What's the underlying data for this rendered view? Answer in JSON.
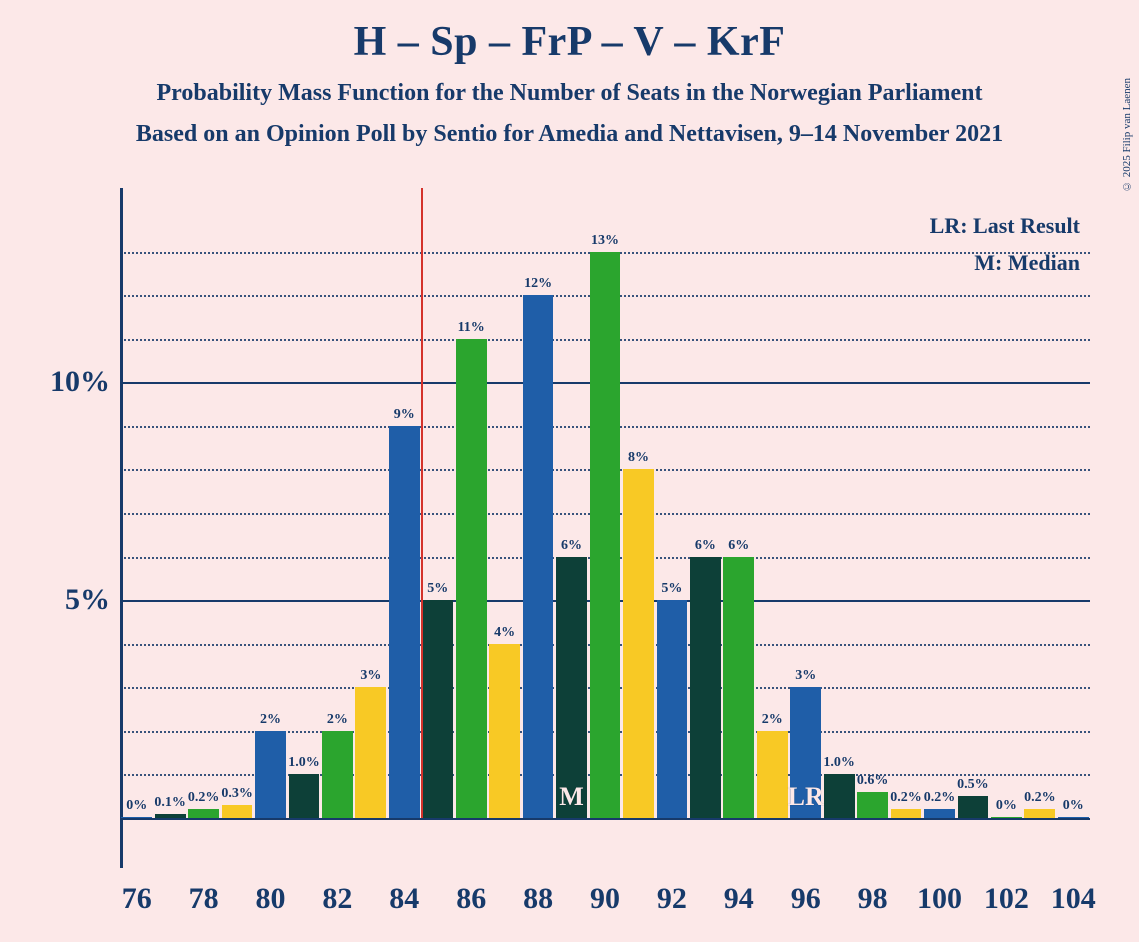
{
  "title": "H – Sp – FrP – V – KrF",
  "subtitle1": "Probability Mass Function for the Number of Seats in the Norwegian Parliament",
  "subtitle2": "Based on an Opinion Poll by Sentio for Amedia and Nettavisen, 9–14 November 2021",
  "copyright": "© 2025 Filip van Laenen",
  "legend_lr": "LR: Last Result",
  "legend_m": "M: Median",
  "chart": {
    "type": "bar",
    "background_color": "#fce8e8",
    "text_color": "#173a6a",
    "title_fontsize": 42,
    "subtitle_fontsize": 24,
    "y_axis": {
      "min": 0,
      "max": 14,
      "major_ticks": [
        5,
        10
      ],
      "major_labels": [
        "5%",
        "10%"
      ],
      "minor_step": 1,
      "major_color": "#173a6a",
      "minor_style": "dotted"
    },
    "x_axis": {
      "min": 76,
      "max": 104,
      "step": 2,
      "labels": [
        "76",
        "78",
        "80",
        "82",
        "84",
        "86",
        "88",
        "90",
        "92",
        "94",
        "96",
        "98",
        "100",
        "102",
        "104"
      ]
    },
    "majority_line": {
      "x": 84.5,
      "color": "#d4322b",
      "width": 2
    },
    "markers": {
      "median": {
        "text": "M",
        "seat": 89,
        "bar_index": 2
      },
      "last_result": {
        "text": "LR",
        "seat": 96,
        "bar_index": 1
      }
    },
    "bar_colors": [
      "#1f5ea8",
      "#0d4038",
      "#2ba52e",
      "#f8c925"
    ],
    "group_width_ratio": 0.82,
    "seats": [
      76,
      77,
      78,
      79,
      80,
      81,
      82,
      83,
      84,
      85,
      86,
      87,
      88,
      89,
      90,
      91,
      92,
      93,
      94,
      95,
      96,
      97,
      98,
      99,
      100,
      101,
      102,
      103,
      104
    ],
    "values": [
      0,
      0.1,
      0.2,
      0.3,
      2,
      1.0,
      2,
      3,
      9,
      5,
      11,
      4,
      12,
      6,
      13,
      8,
      5,
      6,
      6,
      2,
      3,
      1.0,
      0.6,
      0.2,
      0.2,
      0.5,
      0,
      0.2,
      0
    ],
    "labels": [
      "0%",
      "0.1%",
      "0.2%",
      "0.3%",
      "2%",
      "1.0%",
      "2%",
      "3%",
      "9%",
      "5%",
      "11%",
      "4%",
      "12%",
      "6%",
      "13%",
      "8%",
      "5%",
      "6%",
      "6%",
      "2%",
      "3%",
      "1.0%",
      "0.6%",
      "0.2%",
      "0.2%",
      "0.5%",
      "0%",
      "0.2%",
      "0%"
    ]
  }
}
